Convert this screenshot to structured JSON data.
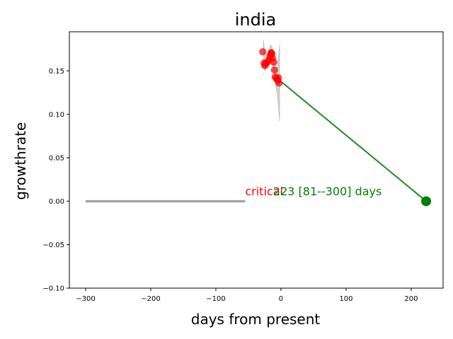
{
  "chart_data": {
    "type": "scatter",
    "title": "india",
    "xlabel": "days from present",
    "ylabel": "growthrate",
    "xlim": [
      -325,
      249
    ],
    "ylim": [
      -0.1,
      0.195
    ],
    "xticks": [
      -300,
      -200,
      -100,
      0,
      100,
      200
    ],
    "yticks": [
      -0.1,
      -0.05,
      0.0,
      0.05,
      0.1,
      0.15
    ],
    "xtick_labels": [
      "−300",
      "−200",
      "−100",
      "0",
      "100",
      "200"
    ],
    "ytick_labels": [
      "−0.10",
      "−0.05",
      "0.00",
      "0.05",
      "0.10",
      "0.15"
    ],
    "grid": false,
    "critical_line": {
      "x": [
        -300,
        -55
      ],
      "y": [
        0,
        0
      ],
      "color": "#999999"
    },
    "uncertainty_band": [
      {
        "x": -27,
        "low": 0.16,
        "high": 0.186
      },
      {
        "x": -25,
        "low": 0.15,
        "high": 0.17
      },
      {
        "x": -22,
        "low": 0.153,
        "high": 0.168
      },
      {
        "x": -20,
        "low": 0.156,
        "high": 0.17
      },
      {
        "x": -18,
        "low": 0.16,
        "high": 0.175
      },
      {
        "x": -16,
        "low": 0.162,
        "high": 0.18
      },
      {
        "x": -14,
        "low": 0.16,
        "high": 0.178
      },
      {
        "x": -12,
        "low": 0.155,
        "high": 0.17
      },
      {
        "x": -10,
        "low": 0.145,
        "high": 0.16
      },
      {
        "x": -8,
        "low": 0.132,
        "high": 0.152
      },
      {
        "x": -6,
        "low": 0.125,
        "high": 0.15
      },
      {
        "x": -4,
        "low": 0.11,
        "high": 0.165
      },
      {
        "x": -2,
        "low": 0.092,
        "high": 0.18
      }
    ],
    "observations": [
      {
        "x": -28,
        "y": 0.172
      },
      {
        "x": -26,
        "y": 0.159
      },
      {
        "x": -25,
        "y": 0.156
      },
      {
        "x": -23,
        "y": 0.158
      },
      {
        "x": -21,
        "y": 0.16
      },
      {
        "x": -19,
        "y": 0.162
      },
      {
        "x": -17,
        "y": 0.166
      },
      {
        "x": -16,
        "y": 0.169
      },
      {
        "x": -15,
        "y": 0.171
      },
      {
        "x": -14,
        "y": 0.17
      },
      {
        "x": -13,
        "y": 0.165
      },
      {
        "x": -11,
        "y": 0.16
      },
      {
        "x": -10,
        "y": 0.151
      },
      {
        "x": -9,
        "y": 0.143
      },
      {
        "x": -7,
        "y": 0.141
      },
      {
        "x": -5,
        "y": 0.139
      },
      {
        "x": -4,
        "y": 0.142
      },
      {
        "x": -3,
        "y": 0.136
      }
    ],
    "projection": {
      "x": [
        -2,
        223
      ],
      "y": [
        0.139,
        0.0
      ],
      "color": "#228b22"
    },
    "projection_end": {
      "x": 223,
      "y": 0.0,
      "color": "#008000"
    },
    "annotations": [
      {
        "text": "critical",
        "x": -55,
        "y": 0.007,
        "color": "#ff0000"
      },
      {
        "text": "223 [81--300] days",
        "x": -12,
        "y": 0.007,
        "color": "#008000"
      }
    ],
    "marker_color": "#ff0000",
    "band_color": "#c8c8c8"
  }
}
